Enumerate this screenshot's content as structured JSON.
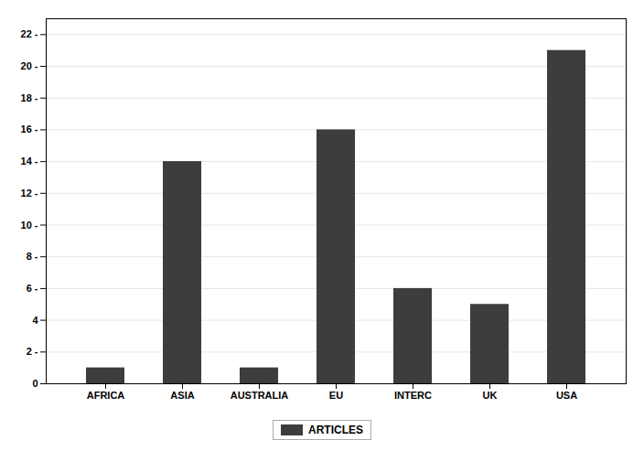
{
  "chart_data": {
    "type": "bar",
    "categories": [
      "AFRICA",
      "ASIA",
      "AUSTRALIA",
      "EU",
      "INTERC",
      "UK",
      "USA"
    ],
    "series": [
      {
        "name": "ARTICLES",
        "color": "#3d3d3d",
        "values": [
          1,
          14,
          1,
          16,
          6,
          5,
          21
        ]
      }
    ],
    "ylim": [
      0,
      23
    ],
    "yticks": [
      0,
      {
        "value": 2,
        "label": "2 -"
      },
      4,
      {
        "value": 6,
        "label": "6 -"
      },
      {
        "value": 8,
        "label": "8 -"
      },
      {
        "value": 10,
        "label": "10 -"
      },
      {
        "value": 12,
        "label": "12 -"
      },
      {
        "value": 14,
        "label": "14 -"
      },
      {
        "value": 16,
        "label": "16 -"
      },
      {
        "value": 18,
        "label": "18 -"
      },
      {
        "value": 20,
        "label": "20 -"
      },
      {
        "value": 22,
        "label": "22 -"
      }
    ],
    "grid": true,
    "legend": "bottom"
  }
}
